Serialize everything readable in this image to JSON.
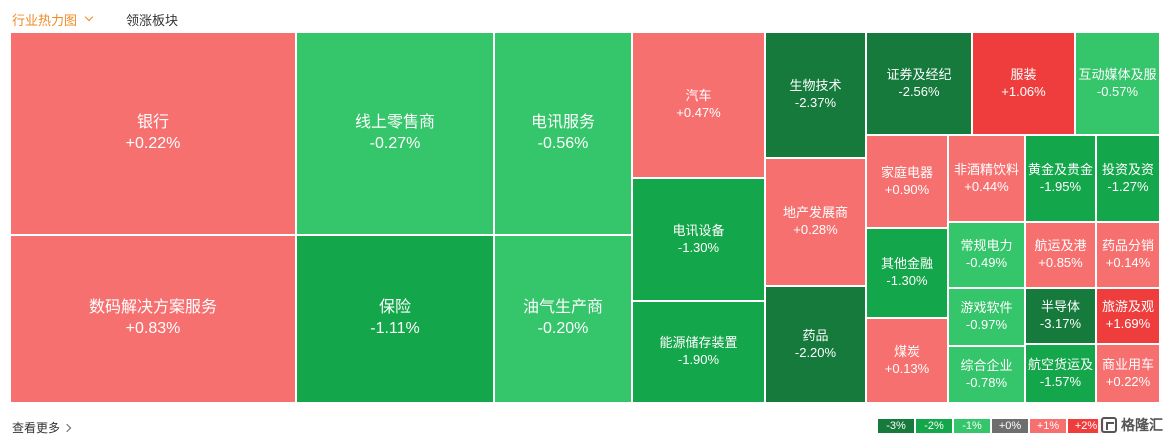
{
  "tabs": {
    "active": "行业热力图",
    "other": "领涨板块"
  },
  "colors": {
    "red_light": "#f77070",
    "red_strong": "#ef3d3d",
    "green_light": "#35c56a",
    "green_mid": "#14a64a",
    "green_dark": "#157a3c"
  },
  "sectors": [
    {
      "name": "银行",
      "change": "+0.22%",
      "level": "r1"
    },
    {
      "name": "数码解决方案服务",
      "change": "+0.83%",
      "level": "r1"
    },
    {
      "name": "线上零售商",
      "change": "-0.27%",
      "level": "g1"
    },
    {
      "name": "保险",
      "change": "-1.11%",
      "level": "g2"
    },
    {
      "name": "电讯服务",
      "change": "-0.56%",
      "level": "g1"
    },
    {
      "name": "油气生产商",
      "change": "-0.20%",
      "level": "g1"
    },
    {
      "name": "汽车",
      "change": "+0.47%",
      "level": "r1"
    },
    {
      "name": "电讯设备",
      "change": "-1.30%",
      "level": "g2"
    },
    {
      "name": "能源储存装置",
      "change": "-1.90%",
      "level": "g2"
    },
    {
      "name": "生物技术",
      "change": "-2.37%",
      "level": "g3"
    },
    {
      "name": "地产发展商",
      "change": "+0.28%",
      "level": "r1"
    },
    {
      "name": "药品",
      "change": "-2.20%",
      "level": "g3"
    },
    {
      "name": "证券及经纪",
      "change": "-2.56%",
      "level": "g3"
    },
    {
      "name": "服装",
      "change": "+1.06%",
      "level": "r2"
    },
    {
      "name": "互动媒体及服",
      "change": "-0.57%",
      "level": "g1"
    },
    {
      "name": "家庭电器",
      "change": "+0.90%",
      "level": "r1"
    },
    {
      "name": "非酒精饮料",
      "change": "+0.44%",
      "level": "r1"
    },
    {
      "name": "黄金及贵金",
      "change": "-1.95%",
      "level": "g2"
    },
    {
      "name": "投资及资",
      "change": "-1.27%",
      "level": "g2"
    },
    {
      "name": "其他金融",
      "change": "-1.30%",
      "level": "g2"
    },
    {
      "name": "常规电力",
      "change": "-0.49%",
      "level": "g1"
    },
    {
      "name": "航运及港",
      "change": "+0.85%",
      "level": "r1"
    },
    {
      "name": "药品分销",
      "change": "+0.14%",
      "level": "r1"
    },
    {
      "name": "游戏软件",
      "change": "-0.97%",
      "level": "g1"
    },
    {
      "name": "半导体",
      "change": "-3.17%",
      "level": "g3"
    },
    {
      "name": "旅游及观",
      "change": "+1.69%",
      "level": "r2"
    },
    {
      "name": "煤炭",
      "change": "+0.13%",
      "level": "r1"
    },
    {
      "name": "综合企业",
      "change": "-0.78%",
      "level": "g1"
    },
    {
      "name": "航空货运及",
      "change": "-1.57%",
      "level": "g2"
    },
    {
      "name": "商业用车",
      "change": "+0.22%",
      "level": "r1"
    }
  ],
  "footer": {
    "more": "查看更多"
  },
  "legend": [
    {
      "label": "-3%",
      "color": "#157a3c"
    },
    {
      "label": "-2%",
      "color": "#14a64a"
    },
    {
      "label": "-1%",
      "color": "#35c56a"
    },
    {
      "label": "+0%",
      "color": "#6e6e6e"
    },
    {
      "label": "+1%",
      "color": "#f77070"
    },
    {
      "label": "+2%",
      "color": "#ef3d3d"
    }
  ],
  "watermark": "格隆汇"
}
